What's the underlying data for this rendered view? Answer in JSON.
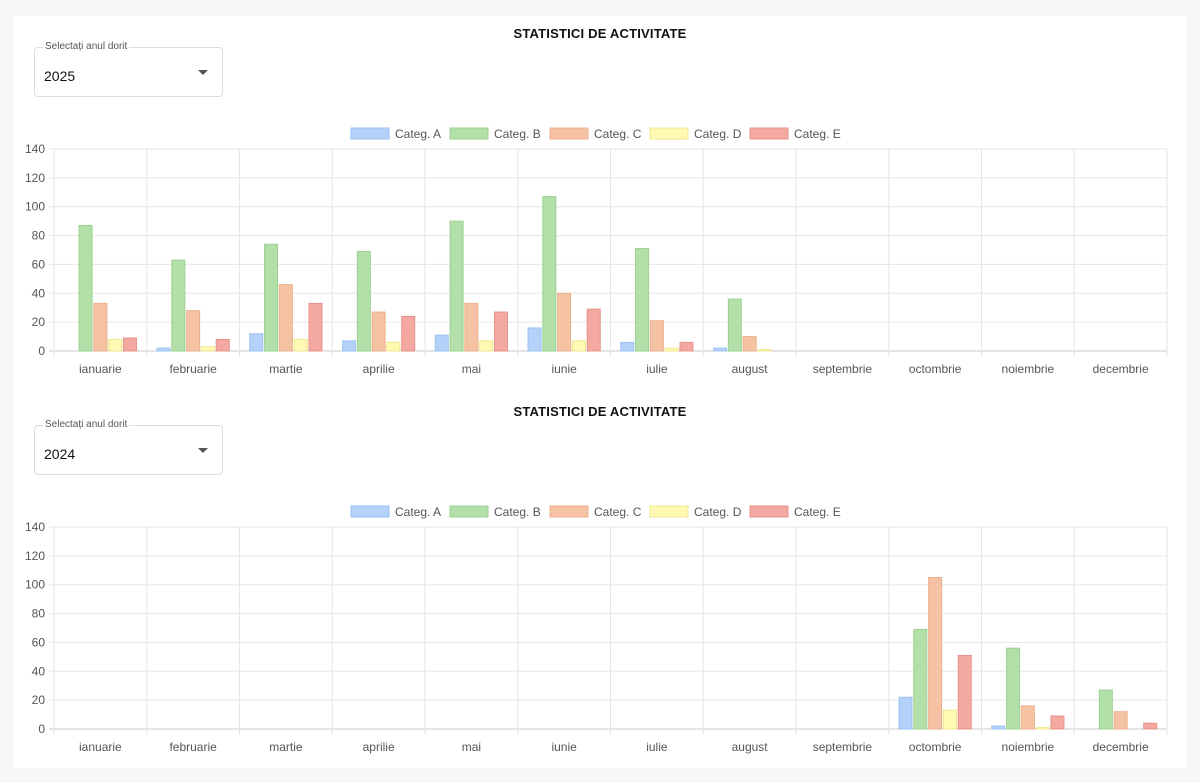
{
  "sections": [
    {
      "title": "STATISTICI DE ACTIVITATE",
      "select": {
        "label": "Selectați anul dorit",
        "value": "2025"
      }
    },
    {
      "title": "STATISTICI DE ACTIVITATE",
      "select": {
        "label": "Selectați anul dorit",
        "value": "2024"
      }
    }
  ],
  "chart_data": [
    {
      "type": "bar",
      "title": "",
      "xlabel": "",
      "ylabel": "",
      "ylim": [
        0,
        140
      ],
      "yticks": [
        0,
        20,
        40,
        60,
        80,
        100,
        120,
        140
      ],
      "grid": true,
      "legend": "top-center",
      "categories": [
        "ianuarie",
        "februarie",
        "martie",
        "aprilie",
        "mai",
        "iunie",
        "iulie",
        "august",
        "septembrie",
        "octombrie",
        "noiembrie",
        "decembrie"
      ],
      "series": [
        {
          "name": "Categ. A",
          "color": "#b3d1f9",
          "border": "#9ec2f2",
          "values": [
            0,
            2,
            12,
            7,
            11,
            16,
            6,
            2,
            0,
            0,
            0,
            0
          ]
        },
        {
          "name": "Categ. B",
          "color": "#b2e0a8",
          "border": "#9cd190",
          "values": [
            87,
            63,
            74,
            69,
            90,
            107,
            71,
            36,
            0,
            0,
            0,
            0
          ]
        },
        {
          "name": "Categ. C",
          "color": "#f5c3a3",
          "border": "#ebb08c",
          "values": [
            33,
            28,
            46,
            27,
            33,
            40,
            21,
            10,
            0,
            0,
            0,
            0
          ]
        },
        {
          "name": "Categ. D",
          "color": "#fff9b3",
          "border": "#f0e88f",
          "values": [
            8,
            3,
            8,
            6,
            7,
            7,
            2,
            1,
            0,
            0,
            0,
            0
          ]
        },
        {
          "name": "Categ. E",
          "color": "#f4a8a2",
          "border": "#e8928b",
          "values": [
            9,
            8,
            33,
            24,
            27,
            29,
            6,
            0,
            0,
            0,
            0,
            0
          ]
        }
      ]
    },
    {
      "type": "bar",
      "title": "",
      "xlabel": "",
      "ylabel": "",
      "ylim": [
        0,
        140
      ],
      "yticks": [
        0,
        20,
        40,
        60,
        80,
        100,
        120,
        140
      ],
      "grid": true,
      "legend": "top-center",
      "categories": [
        "ianuarie",
        "februarie",
        "martie",
        "aprilie",
        "mai",
        "iunie",
        "iulie",
        "august",
        "septembrie",
        "octombrie",
        "noiembrie",
        "decembrie"
      ],
      "series": [
        {
          "name": "Categ. A",
          "color": "#b3d1f9",
          "border": "#9ec2f2",
          "values": [
            0,
            0,
            0,
            0,
            0,
            0,
            0,
            0,
            0,
            22,
            2,
            0
          ]
        },
        {
          "name": "Categ. B",
          "color": "#b2e0a8",
          "border": "#9cd190",
          "values": [
            0,
            0,
            0,
            0,
            0,
            0,
            0,
            0,
            0,
            69,
            56,
            27
          ]
        },
        {
          "name": "Categ. C",
          "color": "#f5c3a3",
          "border": "#ebb08c",
          "values": [
            0,
            0,
            0,
            0,
            0,
            0,
            0,
            0,
            0,
            105,
            16,
            12
          ]
        },
        {
          "name": "Categ. D",
          "color": "#fff9b3",
          "border": "#f0e88f",
          "values": [
            0,
            0,
            0,
            0,
            0,
            0,
            0,
            0,
            0,
            13,
            1,
            0
          ]
        },
        {
          "name": "Categ. E",
          "color": "#f4a8a2",
          "border": "#e8928b",
          "values": [
            0,
            0,
            0,
            0,
            0,
            0,
            0,
            0,
            0,
            51,
            9,
            4
          ]
        }
      ]
    }
  ]
}
